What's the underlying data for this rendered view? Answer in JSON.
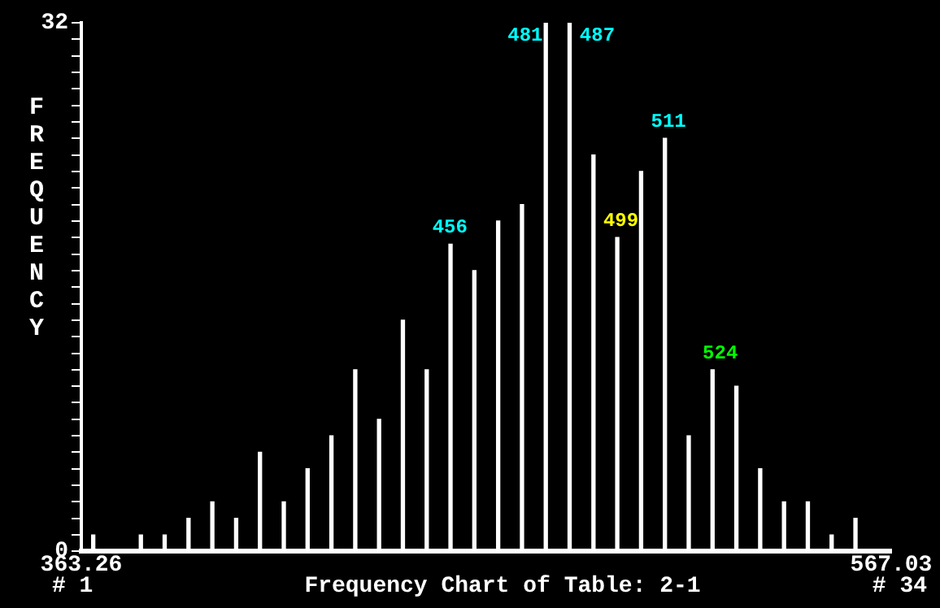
{
  "chart_data": {
    "type": "histogram",
    "title": "Frequency Chart of Table: 2-1",
    "ylabel": "FREQUENCY",
    "bins": [
      363.26,
      369.25,
      375.25,
      381.24,
      387.23,
      393.23,
      399.22,
      405.21,
      411.21,
      417.2,
      423.19,
      429.19,
      435.18,
      441.17,
      447.17,
      453.16,
      459.15,
      465.14,
      471.14,
      477.13,
      483.12,
      489.12,
      495.11,
      501.1,
      507.1,
      513.09,
      519.08,
      525.08,
      531.07,
      537.06,
      543.06,
      549.05,
      555.04,
      561.04,
      567.03
    ],
    "values": [
      1,
      0,
      1,
      1,
      2,
      3,
      2,
      6,
      3,
      5,
      7,
      11,
      8,
      14,
      11,
      18.6,
      17,
      20,
      21,
      32,
      32,
      24,
      19,
      23,
      25,
      7,
      11,
      10,
      5,
      3,
      3,
      1,
      2,
      0
    ],
    "color": "#ffffff",
    "xlim": [
      363.26,
      567.03
    ],
    "xticks": [
      363.26,
      567.03
    ],
    "ylim": [
      0,
      32
    ],
    "yticks": [
      0,
      {
        "value": 1,
        "label": null
      },
      {
        "value": 2,
        "label": null
      },
      {
        "value": 3,
        "label": null
      },
      {
        "value": 4,
        "label": null
      },
      {
        "value": 5,
        "label": null
      },
      {
        "value": 6,
        "label": null
      },
      {
        "value": 7,
        "label": null
      },
      {
        "value": 8,
        "label": null
      },
      {
        "value": 9,
        "label": null
      },
      {
        "value": 10,
        "label": null
      },
      {
        "value": 11,
        "label": null
      },
      {
        "value": 12,
        "label": null
      },
      {
        "value": 13,
        "label": null
      },
      {
        "value": 14,
        "label": null
      },
      {
        "value": 15,
        "label": null
      },
      {
        "value": 16,
        "label": null
      },
      {
        "value": 17,
        "label": null
      },
      {
        "value": 18,
        "label": null
      },
      {
        "value": 19,
        "label": null
      },
      {
        "value": 20,
        "label": null
      },
      {
        "value": 21,
        "label": null
      },
      {
        "value": 22,
        "label": null
      },
      {
        "value": 23,
        "label": null
      },
      {
        "value": 24,
        "label": null
      },
      {
        "value": 25,
        "label": null
      },
      {
        "value": 26,
        "label": null
      },
      {
        "value": 27,
        "label": null
      },
      {
        "value": 28,
        "label": null
      },
      {
        "value": 29,
        "label": null
      },
      {
        "value": 30,
        "label": null
      },
      {
        "value": 31,
        "label": null
      },
      32
    ],
    "grid": false,
    "legend": false,
    "annotations": [
      {
        "text": "456",
        "x": 456,
        "y": 18.6
      },
      {
        "text": "481",
        "x": 481,
        "y": 32
      },
      {
        "text": "487",
        "x": 487,
        "y": 32
      },
      {
        "text": "499",
        "x": 499,
        "y": 19
      },
      {
        "text": "511",
        "x": 511,
        "y": 25
      },
      {
        "text": "524",
        "x": 524,
        "y": 11
      },
      "# 1",
      "# 34"
    ]
  }
}
